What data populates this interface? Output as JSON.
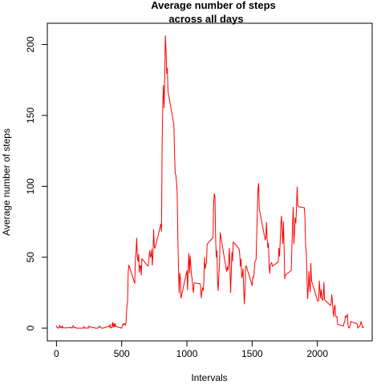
{
  "chart_data": {
    "type": "line",
    "title_line1": "Average number of steps",
    "title_line2": "across all days",
    "xlabel": "Intervals",
    "ylabel": "Average number of steps",
    "xlim": [
      -70,
      2420
    ],
    "ylim": [
      -9,
      215
    ],
    "xticks": [
      0,
      500,
      1000,
      1500,
      2000
    ],
    "yticks": [
      0,
      50,
      100,
      150,
      200
    ],
    "grid": false,
    "legend": "none",
    "series": [
      {
        "color": "#FF0000",
        "points": [
          [
            0,
            1.7
          ],
          [
            5,
            0.3
          ],
          [
            10,
            0.1
          ],
          [
            15,
            0.2
          ],
          [
            20,
            0.1
          ],
          [
            25,
            2.1
          ],
          [
            30,
            0.5
          ],
          [
            35,
            0.9
          ],
          [
            40,
            0.0
          ],
          [
            45,
            1.5
          ],
          [
            50,
            0.3
          ],
          [
            55,
            0.1
          ],
          [
            100,
            0.3
          ],
          [
            105,
            0.7
          ],
          [
            110,
            0.2
          ],
          [
            115,
            0.3
          ],
          [
            120,
            0.0
          ],
          [
            125,
            1.1
          ],
          [
            130,
            1.8
          ],
          [
            135,
            0.2
          ],
          [
            140,
            0.2
          ],
          [
            145,
            0.4
          ],
          [
            150,
            0.3
          ],
          [
            155,
            0.0
          ],
          [
            200,
            0.0
          ],
          [
            205,
            0.0
          ],
          [
            210,
            1.1
          ],
          [
            215,
            0.0
          ],
          [
            220,
            0.0
          ],
          [
            225,
            0.1
          ],
          [
            230,
            0.0
          ],
          [
            235,
            0.2
          ],
          [
            240,
            0.0
          ],
          [
            245,
            0.0
          ],
          [
            250,
            1.5
          ],
          [
            255,
            0.9
          ],
          [
            300,
            0.0
          ],
          [
            305,
            0.0
          ],
          [
            310,
            0.0
          ],
          [
            315,
            0.0
          ],
          [
            320,
            0.2
          ],
          [
            325,
            0.6
          ],
          [
            330,
            1.6
          ],
          [
            335,
            0.6
          ],
          [
            340,
            0.5
          ],
          [
            345,
            0.1
          ],
          [
            350,
            0.0
          ],
          [
            355,
            0.0
          ],
          [
            400,
            1.2
          ],
          [
            405,
            0.9
          ],
          [
            410,
            2.6
          ],
          [
            415,
            0.0
          ],
          [
            420,
            0.3
          ],
          [
            425,
            0.4
          ],
          [
            430,
            4.1
          ],
          [
            435,
            0.7
          ],
          [
            440,
            3.5
          ],
          [
            445,
            0.8
          ],
          [
            450,
            3.1
          ],
          [
            455,
            1.1
          ],
          [
            500,
            0.0
          ],
          [
            505,
            1.6
          ],
          [
            510,
            3.0
          ],
          [
            515,
            2.2
          ],
          [
            520,
            3.3
          ],
          [
            525,
            3.0
          ],
          [
            530,
            2.1
          ],
          [
            535,
            6.1
          ],
          [
            540,
            16.0
          ],
          [
            545,
            18.3
          ],
          [
            550,
            39.5
          ],
          [
            555,
            44.5
          ],
          [
            600,
            31.5
          ],
          [
            605,
            49.3
          ],
          [
            610,
            53.8
          ],
          [
            615,
            63.5
          ],
          [
            620,
            50.0
          ],
          [
            625,
            47.1
          ],
          [
            630,
            52.2
          ],
          [
            635,
            39.3
          ],
          [
            640,
            44.0
          ],
          [
            645,
            44.2
          ],
          [
            650,
            37.4
          ],
          [
            655,
            49.0
          ],
          [
            700,
            43.8
          ],
          [
            705,
            44.4
          ],
          [
            710,
            50.5
          ],
          [
            715,
            54.5
          ],
          [
            720,
            49.9
          ],
          [
            725,
            51.0
          ],
          [
            730,
            55.7
          ],
          [
            735,
            44.3
          ],
          [
            740,
            52.3
          ],
          [
            745,
            69.5
          ],
          [
            750,
            57.8
          ],
          [
            755,
            56.2
          ],
          [
            800,
            73.4
          ],
          [
            805,
            68.2
          ],
          [
            810,
            129.4
          ],
          [
            815,
            157.5
          ],
          [
            820,
            171.2
          ],
          [
            825,
            155.4
          ],
          [
            830,
            177.3
          ],
          [
            835,
            206.2
          ],
          [
            840,
            195.9
          ],
          [
            845,
            179.6
          ],
          [
            850,
            183.4
          ],
          [
            855,
            167.0
          ],
          [
            900,
            143.5
          ],
          [
            905,
            124.0
          ],
          [
            910,
            109.1
          ],
          [
            915,
            108.1
          ],
          [
            920,
            103.7
          ],
          [
            925,
            95.9
          ],
          [
            930,
            66.2
          ],
          [
            935,
            45.2
          ],
          [
            940,
            24.8
          ],
          [
            945,
            38.8
          ],
          [
            950,
            35.0
          ],
          [
            955,
            21.1
          ],
          [
            1000,
            40.6
          ],
          [
            1005,
            26.9
          ],
          [
            1010,
            42.4
          ],
          [
            1015,
            52.7
          ],
          [
            1020,
            38.9
          ],
          [
            1025,
            50.8
          ],
          [
            1030,
            44.3
          ],
          [
            1035,
            37.4
          ],
          [
            1040,
            34.7
          ],
          [
            1045,
            28.3
          ],
          [
            1050,
            25.1
          ],
          [
            1055,
            31.9
          ],
          [
            1100,
            31.4
          ],
          [
            1105,
            29.7
          ],
          [
            1110,
            21.3
          ],
          [
            1115,
            25.5
          ],
          [
            1120,
            28.4
          ],
          [
            1125,
            26.5
          ],
          [
            1130,
            33.4
          ],
          [
            1135,
            50.0
          ],
          [
            1140,
            42.0
          ],
          [
            1145,
            44.6
          ],
          [
            1150,
            46.0
          ],
          [
            1155,
            59.2
          ],
          [
            1200,
            63.9
          ],
          [
            1205,
            87.7
          ],
          [
            1210,
            94.8
          ],
          [
            1215,
            92.8
          ],
          [
            1220,
            63.4
          ],
          [
            1225,
            50.2
          ],
          [
            1230,
            54.5
          ],
          [
            1235,
            32.4
          ],
          [
            1240,
            26.5
          ],
          [
            1245,
            37.7
          ],
          [
            1250,
            45.1
          ],
          [
            1255,
            67.3
          ],
          [
            1300,
            42.3
          ],
          [
            1305,
            39.9
          ],
          [
            1310,
            43.3
          ],
          [
            1315,
            40.98
          ],
          [
            1320,
            46.2
          ],
          [
            1325,
            56.4
          ],
          [
            1330,
            42.8
          ],
          [
            1335,
            25.1
          ],
          [
            1340,
            39.96
          ],
          [
            1345,
            53.5
          ],
          [
            1350,
            47.3
          ],
          [
            1355,
            60.8
          ],
          [
            1400,
            55.8
          ],
          [
            1405,
            51.96
          ],
          [
            1410,
            43.6
          ],
          [
            1415,
            48.7
          ],
          [
            1420,
            35.5
          ],
          [
            1425,
            37.5
          ],
          [
            1430,
            41.8
          ],
          [
            1435,
            27.5
          ],
          [
            1440,
            17.1
          ],
          [
            1445,
            26.1
          ],
          [
            1450,
            43.6
          ],
          [
            1455,
            43.8
          ],
          [
            1500,
            30.0
          ],
          [
            1505,
            36.1
          ],
          [
            1510,
            35.5
          ],
          [
            1515,
            38.8
          ],
          [
            1520,
            45.96
          ],
          [
            1525,
            47.8
          ],
          [
            1530,
            48.1
          ],
          [
            1535,
            65.3
          ],
          [
            1540,
            82.9
          ],
          [
            1545,
            98.7
          ],
          [
            1550,
            102.1
          ],
          [
            1555,
            83.96
          ],
          [
            1600,
            62.1
          ],
          [
            1605,
            64.1
          ],
          [
            1610,
            74.5
          ],
          [
            1615,
            63.2
          ],
          [
            1620,
            56.9
          ],
          [
            1625,
            59.8
          ],
          [
            1630,
            43.9
          ],
          [
            1635,
            38.6
          ],
          [
            1640,
            44.7
          ],
          [
            1645,
            45.5
          ],
          [
            1650,
            46.2
          ],
          [
            1655,
            43.7
          ],
          [
            1700,
            46.6
          ],
          [
            1705,
            56.3
          ],
          [
            1710,
            50.7
          ],
          [
            1715,
            61.2
          ],
          [
            1720,
            73.4
          ],
          [
            1725,
            79.0
          ],
          [
            1730,
            68.9
          ],
          [
            1735,
            59.7
          ],
          [
            1740,
            75.1
          ],
          [
            1745,
            56.5
          ],
          [
            1750,
            34.8
          ],
          [
            1755,
            37.5
          ],
          [
            1800,
            40.7
          ],
          [
            1805,
            58.0
          ],
          [
            1810,
            74.7
          ],
          [
            1815,
            85.3
          ],
          [
            1820,
            59.3
          ],
          [
            1825,
            67.8
          ],
          [
            1830,
            77.7
          ],
          [
            1835,
            74.2
          ],
          [
            1840,
            85.3
          ],
          [
            1845,
            99.5
          ],
          [
            1850,
            86.6
          ],
          [
            1855,
            85.6
          ],
          [
            1900,
            84.9
          ],
          [
            1905,
            77.8
          ],
          [
            1910,
            58.0
          ],
          [
            1915,
            53.4
          ],
          [
            1920,
            36.3
          ],
          [
            1925,
            20.7
          ],
          [
            1930,
            27.4
          ],
          [
            1935,
            40.0
          ],
          [
            1940,
            30.2
          ],
          [
            1945,
            25.5
          ],
          [
            1950,
            45.7
          ],
          [
            1955,
            33.5
          ],
          [
            2000,
            19.6
          ],
          [
            2005,
            19.0
          ],
          [
            2010,
            19.3
          ],
          [
            2015,
            33.3
          ],
          [
            2020,
            26.8
          ],
          [
            2025,
            21.2
          ],
          [
            2030,
            27.3
          ],
          [
            2035,
            21.3
          ],
          [
            2040,
            19.5
          ],
          [
            2045,
            21.3
          ],
          [
            2050,
            32.3
          ],
          [
            2055,
            20.2
          ],
          [
            2100,
            15.9
          ],
          [
            2105,
            17.2
          ],
          [
            2110,
            23.5
          ],
          [
            2115,
            19.2
          ],
          [
            2120,
            12.5
          ],
          [
            2125,
            8.0
          ],
          [
            2130,
            14.7
          ],
          [
            2135,
            16.3
          ],
          [
            2140,
            8.7
          ],
          [
            2145,
            7.8
          ],
          [
            2150,
            8.1
          ],
          [
            2155,
            2.6
          ],
          [
            2200,
            1.5
          ],
          [
            2205,
            3.7
          ],
          [
            2210,
            4.8
          ],
          [
            2215,
            8.5
          ],
          [
            2220,
            7.5
          ],
          [
            2225,
            8.7
          ],
          [
            2230,
            9.8
          ],
          [
            2235,
            2.2
          ],
          [
            2240,
            0.3
          ],
          [
            2245,
            0.1
          ],
          [
            2250,
            1.6
          ],
          [
            2255,
            4.6
          ],
          [
            2300,
            3.3
          ],
          [
            2305,
            2.8
          ],
          [
            2310,
            0.0
          ],
          [
            2315,
            0.8
          ],
          [
            2320,
            1.0
          ],
          [
            2325,
            1.6
          ],
          [
            2330,
            2.6
          ],
          [
            2335,
            4.7
          ],
          [
            2340,
            3.3
          ],
          [
            2345,
            0.6
          ],
          [
            2350,
            0.2
          ],
          [
            2355,
            1.1
          ]
        ]
      }
    ]
  }
}
